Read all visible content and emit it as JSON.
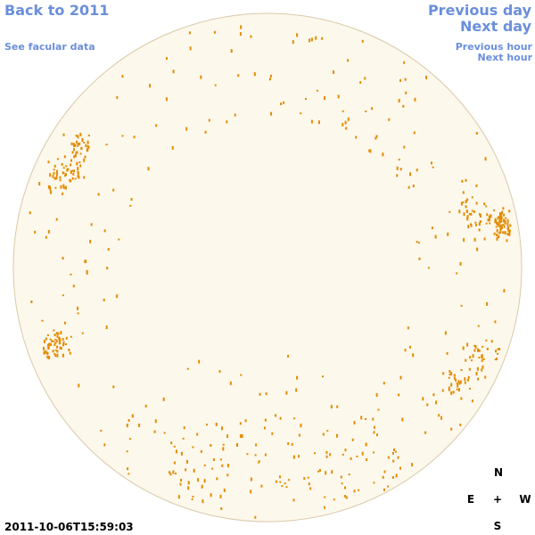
{
  "nav": {
    "back": "Back to 2011",
    "facular": "See facular data",
    "previous_day": "Previous day",
    "next_day": "Next day",
    "previous_hour": "Previous hour",
    "next_hour": "Next hour"
  },
  "compass": {
    "north": "N",
    "east": "E",
    "center": "+",
    "west": "W",
    "south": "S"
  },
  "timestamp": "2011-10-06T15:59:03"
}
